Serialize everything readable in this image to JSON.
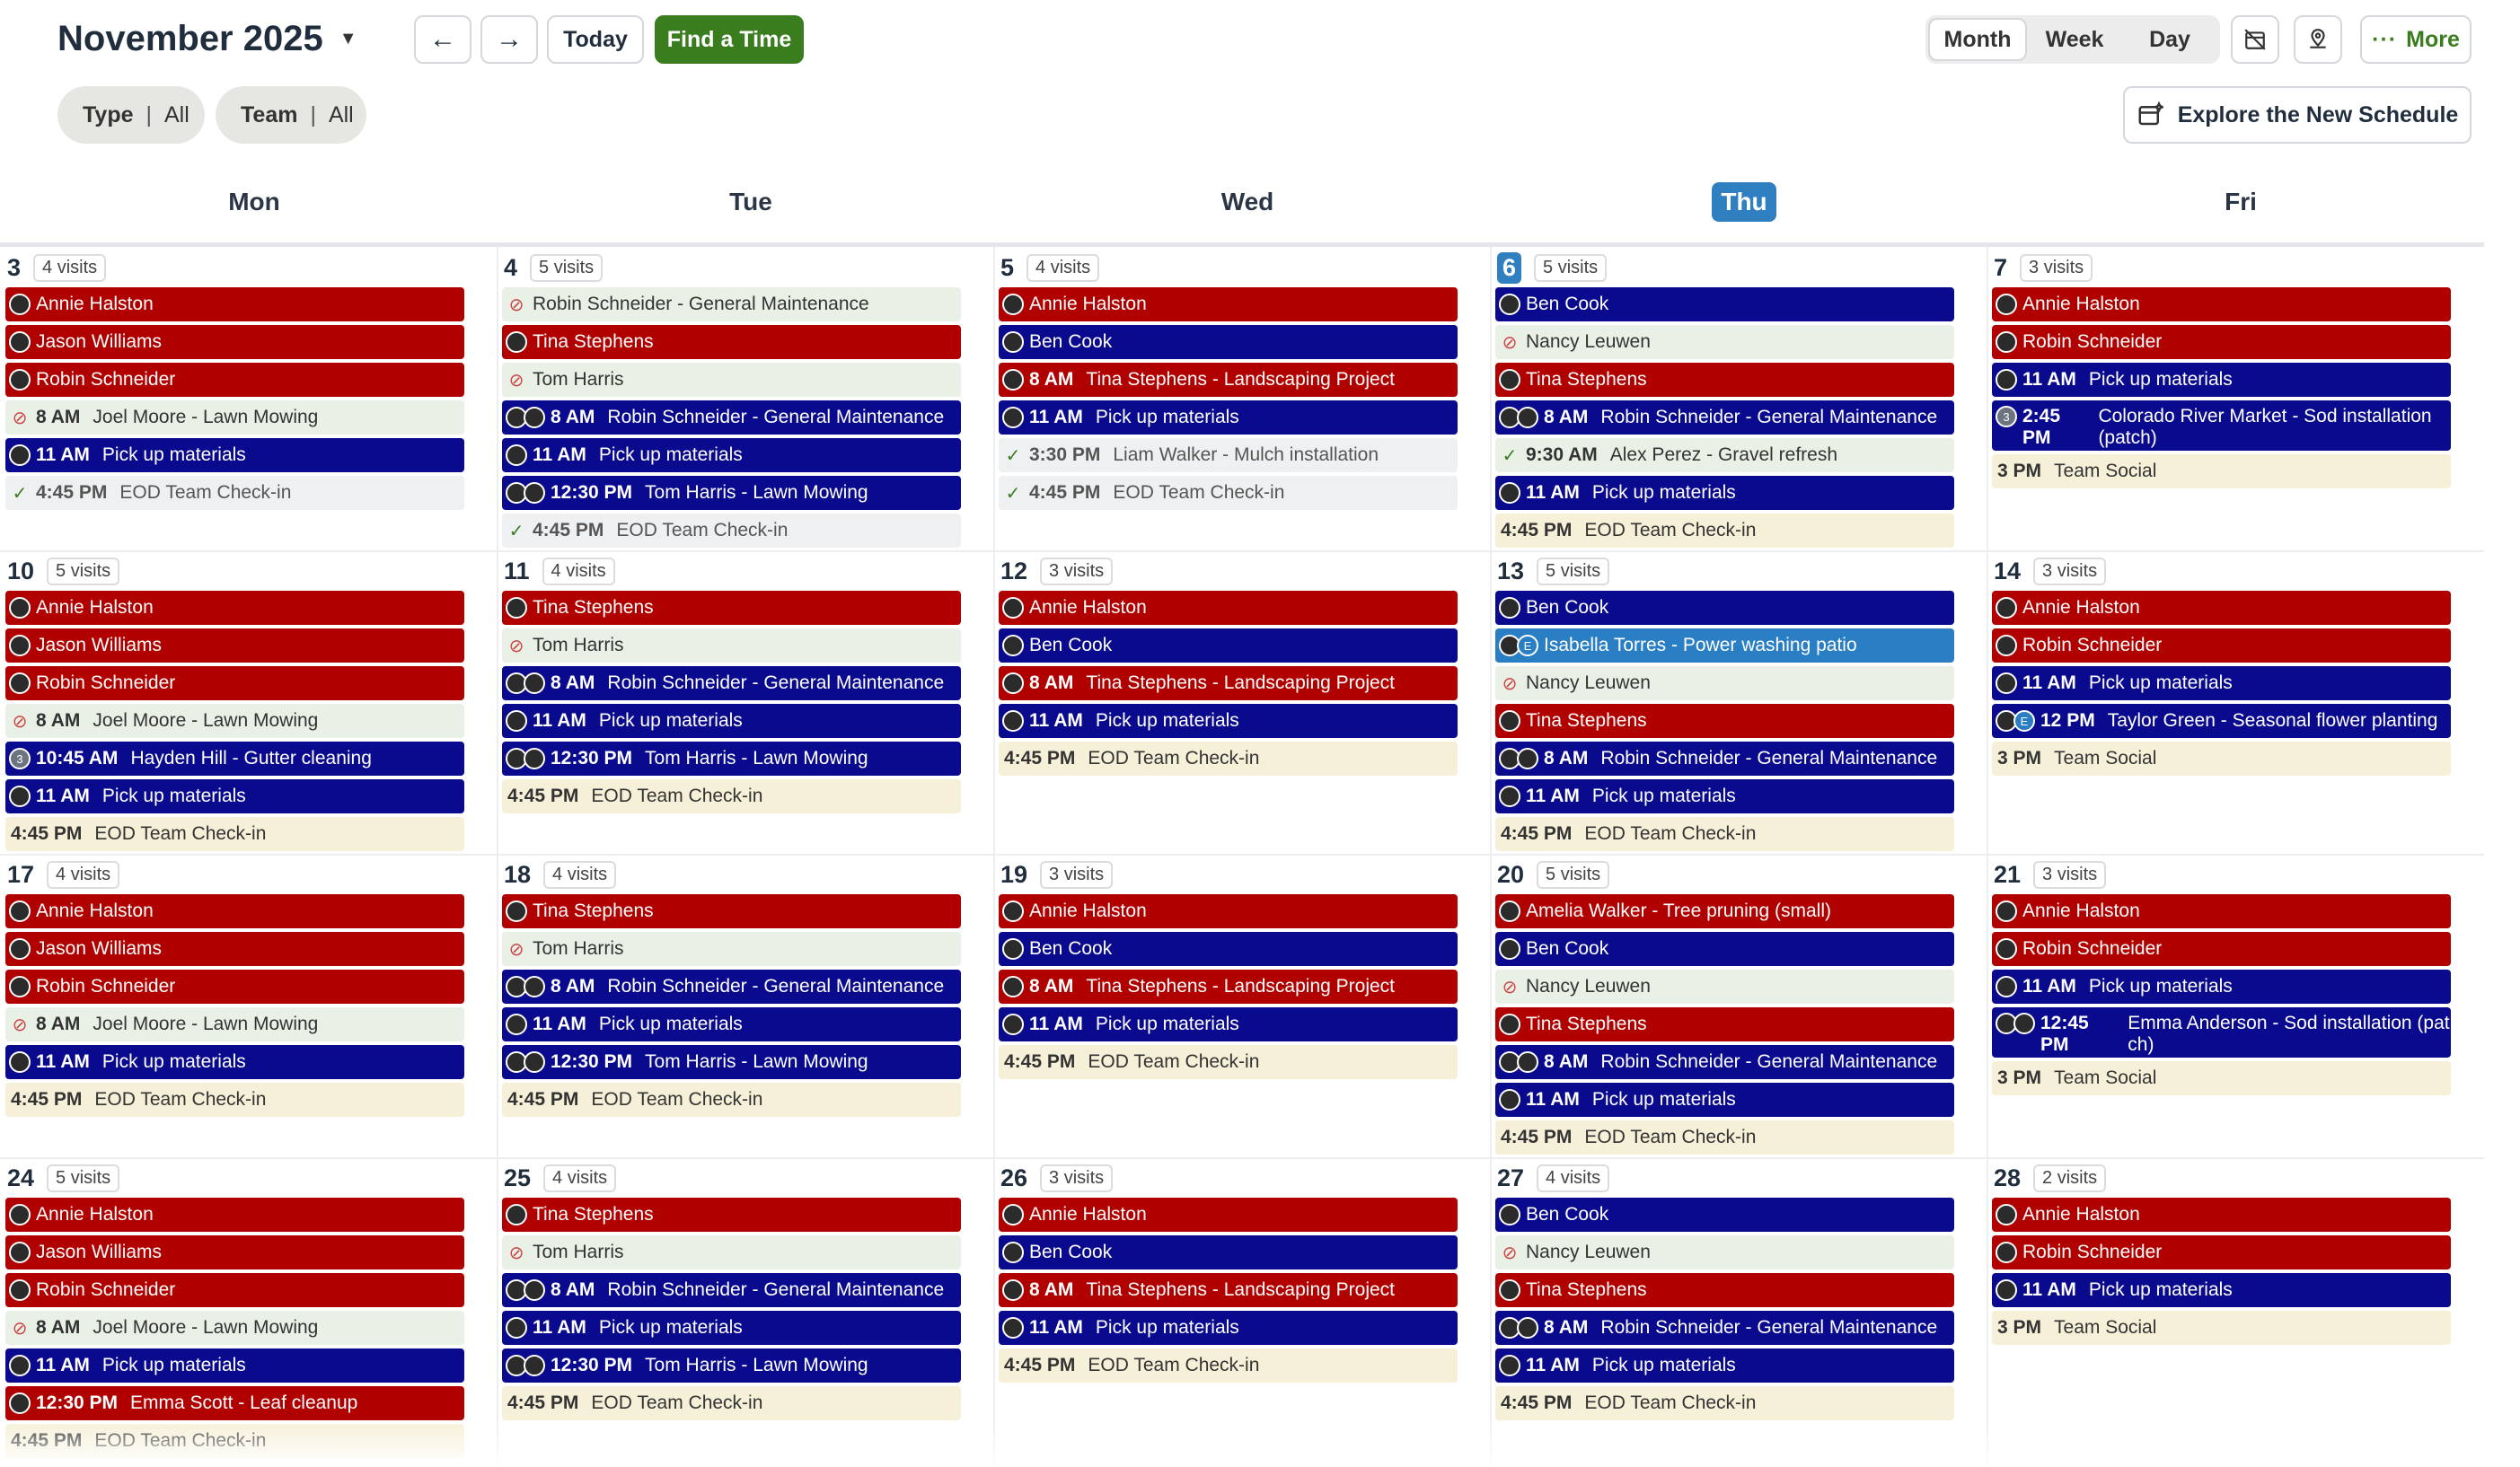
{
  "title": "November 2025",
  "toolbar": {
    "today": "Today",
    "find": "Find a Time",
    "views": [
      "Month",
      "Week",
      "Day"
    ],
    "active_view": "Month",
    "more": "More",
    "filters": [
      {
        "name": "Type",
        "value": "All"
      },
      {
        "name": "Team",
        "value": "All"
      }
    ],
    "explore": "Explore the New Schedule"
  },
  "colors": {
    "accent_green": "#3a7d1f",
    "red_event": "#b00000",
    "blue_event": "#0a0a8e",
    "today_blue": "#2f7fc1"
  },
  "days": [
    "Mon",
    "Tue",
    "Wed",
    "Thu",
    "Fri"
  ],
  "today_index": 3,
  "weeks": [
    [
      {
        "num": "3",
        "visits": "4 visits",
        "events": [
          {
            "c": "red",
            "ic": "av",
            "t": "",
            "l": "Annie Halston"
          },
          {
            "c": "red",
            "ic": "av",
            "t": "",
            "l": "Jason Williams"
          },
          {
            "c": "red",
            "ic": "av",
            "t": "",
            "l": "Robin Schneider"
          },
          {
            "c": "green",
            "ic": "no",
            "t": "8 AM",
            "l": "Joel Moore - Lawn Mowing"
          },
          {
            "c": "blue",
            "ic": "av",
            "t": "11 AM",
            "l": "Pick up materials"
          },
          {
            "c": "gray",
            "ic": "chk",
            "t": "4:45 PM",
            "l": "EOD Team Check-in"
          }
        ]
      },
      {
        "num": "4",
        "visits": "5 visits",
        "events": [
          {
            "c": "green",
            "ic": "no",
            "t": "",
            "l": "Robin Schneider - General Maintenance"
          },
          {
            "c": "red",
            "ic": "av",
            "t": "",
            "l": "Tina Stephens"
          },
          {
            "c": "green",
            "ic": "no",
            "t": "",
            "l": "Tom Harris"
          },
          {
            "c": "blue",
            "ic": "av2",
            "t": "8 AM",
            "l": "Robin Schneider - General Maintenance"
          },
          {
            "c": "blue",
            "ic": "av",
            "t": "11 AM",
            "l": "Pick up materials"
          },
          {
            "c": "blue",
            "ic": "av2",
            "t": "12:30 PM",
            "l": "Tom Harris - Lawn Mowing"
          },
          {
            "c": "gray",
            "ic": "chk",
            "t": "4:45 PM",
            "l": "EOD Team Check-in"
          }
        ]
      },
      {
        "num": "5",
        "visits": "4 visits",
        "events": [
          {
            "c": "red",
            "ic": "av",
            "t": "",
            "l": "Annie Halston"
          },
          {
            "c": "blue",
            "ic": "av",
            "t": "",
            "l": "Ben Cook"
          },
          {
            "c": "red",
            "ic": "av",
            "t": "8 AM",
            "l": "Tina Stephens - Landscaping Project"
          },
          {
            "c": "blue",
            "ic": "av",
            "t": "11 AM",
            "l": "Pick up materials"
          },
          {
            "c": "gray",
            "ic": "chk",
            "t": "3:30 PM",
            "l": "Liam Walker - Mulch installation"
          },
          {
            "c": "gray",
            "ic": "chk",
            "t": "4:45 PM",
            "l": "EOD Team Check-in"
          }
        ]
      },
      {
        "num": "6",
        "visits": "5 visits",
        "events": [
          {
            "c": "blue",
            "ic": "av",
            "t": "",
            "l": "Ben Cook"
          },
          {
            "c": "green",
            "ic": "no",
            "t": "",
            "l": "Nancy Leuwen"
          },
          {
            "c": "red",
            "ic": "av",
            "t": "",
            "l": "Tina Stephens"
          },
          {
            "c": "blue",
            "ic": "av2",
            "t": "8 AM",
            "l": "Robin Schneider - General Maintenance"
          },
          {
            "c": "green",
            "ic": "chk",
            "t": "9:30 AM",
            "l": "Alex Perez - Gravel refresh"
          },
          {
            "c": "blue",
            "ic": "av",
            "t": "11 AM",
            "l": "Pick up materials"
          },
          {
            "c": "cream",
            "ic": "",
            "t": "4:45 PM",
            "l": "EOD Team Check-in"
          }
        ]
      },
      {
        "num": "7",
        "visits": "3 visits",
        "events": [
          {
            "c": "red",
            "ic": "av",
            "t": "",
            "l": "Annie Halston"
          },
          {
            "c": "red",
            "ic": "av",
            "t": "",
            "l": "Robin Schneider"
          },
          {
            "c": "blue",
            "ic": "av",
            "t": "11 AM",
            "l": "Pick up materials"
          },
          {
            "c": "blue tall",
            "ic": "grey3",
            "t": "2:45 PM",
            "l": "Colorado River Market - Sod installation (patch)"
          },
          {
            "c": "cream",
            "ic": "",
            "t": "3 PM",
            "l": "Team Social"
          }
        ]
      }
    ],
    [
      {
        "num": "10",
        "visits": "5 visits",
        "events": [
          {
            "c": "red",
            "ic": "av",
            "t": "",
            "l": "Annie Halston"
          },
          {
            "c": "red",
            "ic": "av",
            "t": "",
            "l": "Jason Williams"
          },
          {
            "c": "red",
            "ic": "av",
            "t": "",
            "l": "Robin Schneider"
          },
          {
            "c": "green",
            "ic": "no",
            "t": "8 AM",
            "l": "Joel Moore - Lawn Mowing"
          },
          {
            "c": "blue",
            "ic": "grey3",
            "t": "10:45 AM",
            "l": "Hayden Hill - Gutter cleaning"
          },
          {
            "c": "blue",
            "ic": "av",
            "t": "11 AM",
            "l": "Pick up materials"
          },
          {
            "c": "cream",
            "ic": "",
            "t": "4:45 PM",
            "l": "EOD Team Check-in"
          }
        ]
      },
      {
        "num": "11",
        "visits": "4 visits",
        "events": [
          {
            "c": "red",
            "ic": "av",
            "t": "",
            "l": "Tina Stephens"
          },
          {
            "c": "green",
            "ic": "no",
            "t": "",
            "l": "Tom Harris"
          },
          {
            "c": "blue",
            "ic": "av2",
            "t": "8 AM",
            "l": "Robin Schneider - General Maintenance"
          },
          {
            "c": "blue",
            "ic": "av",
            "t": "11 AM",
            "l": "Pick up materials"
          },
          {
            "c": "blue",
            "ic": "av2",
            "t": "12:30 PM",
            "l": "Tom Harris - Lawn Mowing"
          },
          {
            "c": "cream",
            "ic": "",
            "t": "4:45 PM",
            "l": "EOD Team Check-in"
          }
        ]
      },
      {
        "num": "12",
        "visits": "3 visits",
        "events": [
          {
            "c": "red",
            "ic": "av",
            "t": "",
            "l": "Annie Halston"
          },
          {
            "c": "blue",
            "ic": "av",
            "t": "",
            "l": "Ben Cook"
          },
          {
            "c": "red",
            "ic": "av",
            "t": "8 AM",
            "l": "Tina Stephens - Landscaping Project"
          },
          {
            "c": "blue",
            "ic": "av",
            "t": "11 AM",
            "l": "Pick up materials"
          },
          {
            "c": "cream",
            "ic": "",
            "t": "4:45 PM",
            "l": "EOD Team Check-in"
          }
        ]
      },
      {
        "num": "13",
        "visits": "5 visits",
        "events": [
          {
            "c": "blue",
            "ic": "av",
            "t": "",
            "l": "Ben Cook"
          },
          {
            "c": "lblue",
            "ic": "avE",
            "t": "",
            "l": "Isabella Torres - Power washing patio"
          },
          {
            "c": "green",
            "ic": "no",
            "t": "",
            "l": "Nancy Leuwen"
          },
          {
            "c": "red",
            "ic": "av",
            "t": "",
            "l": "Tina Stephens"
          },
          {
            "c": "blue",
            "ic": "av2",
            "t": "8 AM",
            "l": "Robin Schneider - General Maintenance"
          },
          {
            "c": "blue",
            "ic": "av",
            "t": "11 AM",
            "l": "Pick up materials"
          },
          {
            "c": "cream",
            "ic": "",
            "t": "4:45 PM",
            "l": "EOD Team Check-in"
          }
        ]
      },
      {
        "num": "14",
        "visits": "3 visits",
        "events": [
          {
            "c": "red",
            "ic": "av",
            "t": "",
            "l": "Annie Halston"
          },
          {
            "c": "red",
            "ic": "av",
            "t": "",
            "l": "Robin Schneider"
          },
          {
            "c": "blue",
            "ic": "av",
            "t": "11 AM",
            "l": "Pick up materials"
          },
          {
            "c": "blue",
            "ic": "avE",
            "t": "12 PM",
            "l": "Taylor Green - Seasonal flower planting"
          },
          {
            "c": "cream",
            "ic": "",
            "t": "3 PM",
            "l": "Team Social"
          }
        ]
      }
    ],
    [
      {
        "num": "17",
        "visits": "4 visits",
        "events": [
          {
            "c": "red",
            "ic": "av",
            "t": "",
            "l": "Annie Halston"
          },
          {
            "c": "red",
            "ic": "av",
            "t": "",
            "l": "Jason Williams"
          },
          {
            "c": "red",
            "ic": "av",
            "t": "",
            "l": "Robin Schneider"
          },
          {
            "c": "green",
            "ic": "no",
            "t": "8 AM",
            "l": "Joel Moore - Lawn Mowing"
          },
          {
            "c": "blue",
            "ic": "av",
            "t": "11 AM",
            "l": "Pick up materials"
          },
          {
            "c": "cream",
            "ic": "",
            "t": "4:45 PM",
            "l": "EOD Team Check-in"
          }
        ]
      },
      {
        "num": "18",
        "visits": "4 visits",
        "events": [
          {
            "c": "red",
            "ic": "av",
            "t": "",
            "l": "Tina Stephens"
          },
          {
            "c": "green",
            "ic": "no",
            "t": "",
            "l": "Tom Harris"
          },
          {
            "c": "blue",
            "ic": "av2",
            "t": "8 AM",
            "l": "Robin Schneider - General Maintenance"
          },
          {
            "c": "blue",
            "ic": "av",
            "t": "11 AM",
            "l": "Pick up materials"
          },
          {
            "c": "blue",
            "ic": "av2",
            "t": "12:30 PM",
            "l": "Tom Harris - Lawn Mowing"
          },
          {
            "c": "cream",
            "ic": "",
            "t": "4:45 PM",
            "l": "EOD Team Check-in"
          }
        ]
      },
      {
        "num": "19",
        "visits": "3 visits",
        "events": [
          {
            "c": "red",
            "ic": "av",
            "t": "",
            "l": "Annie Halston"
          },
          {
            "c": "blue",
            "ic": "av",
            "t": "",
            "l": "Ben Cook"
          },
          {
            "c": "red",
            "ic": "av",
            "t": "8 AM",
            "l": "Tina Stephens - Landscaping Project"
          },
          {
            "c": "blue",
            "ic": "av",
            "t": "11 AM",
            "l": "Pick up materials"
          },
          {
            "c": "cream",
            "ic": "",
            "t": "4:45 PM",
            "l": "EOD Team Check-in"
          }
        ]
      },
      {
        "num": "20",
        "visits": "5 visits",
        "events": [
          {
            "c": "red",
            "ic": "av",
            "t": "",
            "l": "Amelia Walker - Tree pruning (small)"
          },
          {
            "c": "blue",
            "ic": "av",
            "t": "",
            "l": "Ben Cook"
          },
          {
            "c": "green",
            "ic": "no",
            "t": "",
            "l": "Nancy Leuwen"
          },
          {
            "c": "red",
            "ic": "av",
            "t": "",
            "l": "Tina Stephens"
          },
          {
            "c": "blue",
            "ic": "av2",
            "t": "8 AM",
            "l": "Robin Schneider - General Maintenance"
          },
          {
            "c": "blue",
            "ic": "av",
            "t": "11 AM",
            "l": "Pick up materials"
          },
          {
            "c": "cream",
            "ic": "",
            "t": "4:45 PM",
            "l": "EOD Team Check-in"
          }
        ]
      },
      {
        "num": "21",
        "visits": "3 visits",
        "events": [
          {
            "c": "red",
            "ic": "av",
            "t": "",
            "l": "Annie Halston"
          },
          {
            "c": "red",
            "ic": "av",
            "t": "",
            "l": "Robin Schneider"
          },
          {
            "c": "blue",
            "ic": "av",
            "t": "11 AM",
            "l": "Pick up materials"
          },
          {
            "c": "blue tall",
            "ic": "av2",
            "t": "12:45 PM",
            "l": "Emma Anderson - Sod installation (pat ch)"
          },
          {
            "c": "cream",
            "ic": "",
            "t": "3 PM",
            "l": "Team Social"
          }
        ]
      }
    ],
    [
      {
        "num": "24",
        "visits": "5 visits",
        "events": [
          {
            "c": "red",
            "ic": "av",
            "t": "",
            "l": "Annie Halston"
          },
          {
            "c": "red",
            "ic": "av",
            "t": "",
            "l": "Jason Williams"
          },
          {
            "c": "red",
            "ic": "av",
            "t": "",
            "l": "Robin Schneider"
          },
          {
            "c": "green",
            "ic": "no",
            "t": "8 AM",
            "l": "Joel Moore - Lawn Mowing"
          },
          {
            "c": "blue",
            "ic": "av",
            "t": "11 AM",
            "l": "Pick up materials"
          },
          {
            "c": "red",
            "ic": "av",
            "t": "12:30 PM",
            "l": "Emma Scott - Leaf cleanup"
          },
          {
            "c": "cream",
            "ic": "",
            "t": "4:45 PM",
            "l": "EOD Team Check-in"
          }
        ]
      },
      {
        "num": "25",
        "visits": "4 visits",
        "events": [
          {
            "c": "red",
            "ic": "av",
            "t": "",
            "l": "Tina Stephens"
          },
          {
            "c": "green",
            "ic": "no",
            "t": "",
            "l": "Tom Harris"
          },
          {
            "c": "blue",
            "ic": "av2",
            "t": "8 AM",
            "l": "Robin Schneider - General Maintenance"
          },
          {
            "c": "blue",
            "ic": "av",
            "t": "11 AM",
            "l": "Pick up materials"
          },
          {
            "c": "blue",
            "ic": "av2",
            "t": "12:30 PM",
            "l": "Tom Harris - Lawn Mowing"
          },
          {
            "c": "cream",
            "ic": "",
            "t": "4:45 PM",
            "l": "EOD Team Check-in"
          }
        ]
      },
      {
        "num": "26",
        "visits": "3 visits",
        "events": [
          {
            "c": "red",
            "ic": "av",
            "t": "",
            "l": "Annie Halston"
          },
          {
            "c": "blue",
            "ic": "av",
            "t": "",
            "l": "Ben Cook"
          },
          {
            "c": "red",
            "ic": "av",
            "t": "8 AM",
            "l": "Tina Stephens - Landscaping Project"
          },
          {
            "c": "blue",
            "ic": "av",
            "t": "11 AM",
            "l": "Pick up materials"
          },
          {
            "c": "cream",
            "ic": "",
            "t": "4:45 PM",
            "l": "EOD Team Check-in"
          }
        ]
      },
      {
        "num": "27",
        "visits": "4 visits",
        "events": [
          {
            "c": "blue",
            "ic": "av",
            "t": "",
            "l": "Ben Cook"
          },
          {
            "c": "green",
            "ic": "no",
            "t": "",
            "l": "Nancy Leuwen"
          },
          {
            "c": "red",
            "ic": "av",
            "t": "",
            "l": "Tina Stephens"
          },
          {
            "c": "blue",
            "ic": "av2",
            "t": "8 AM",
            "l": "Robin Schneider - General Maintenance"
          },
          {
            "c": "blue",
            "ic": "av",
            "t": "11 AM",
            "l": "Pick up materials"
          },
          {
            "c": "cream",
            "ic": "",
            "t": "4:45 PM",
            "l": "EOD Team Check-in"
          }
        ]
      },
      {
        "num": "28",
        "visits": "2 visits",
        "events": [
          {
            "c": "red",
            "ic": "av",
            "t": "",
            "l": "Annie Halston"
          },
          {
            "c": "red",
            "ic": "av",
            "t": "",
            "l": "Robin Schneider"
          },
          {
            "c": "blue",
            "ic": "av",
            "t": "11 AM",
            "l": "Pick up materials"
          },
          {
            "c": "cream",
            "ic": "",
            "t": "3 PM",
            "l": "Team Social"
          }
        ]
      }
    ]
  ]
}
